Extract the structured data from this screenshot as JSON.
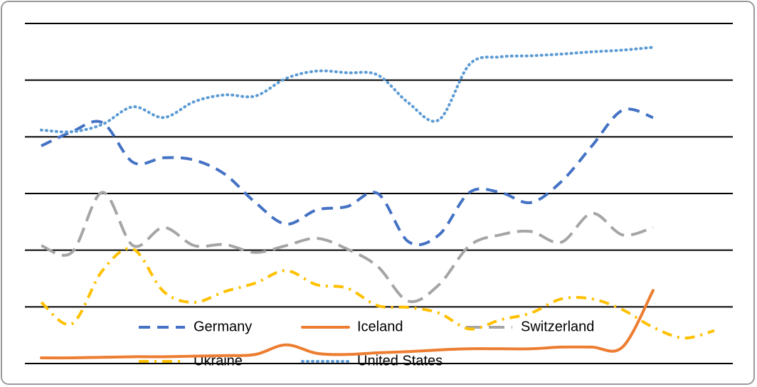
{
  "chart_data": {
    "type": "line",
    "categories": [
      null,
      null,
      null,
      null,
      null,
      null,
      null,
      null,
      null,
      null,
      null,
      null,
      null,
      null,
      null,
      null,
      null,
      null,
      null,
      null,
      null,
      null,
      null
    ],
    "ylim": [
      0,
      6
    ],
    "yticks": [
      0,
      1,
      2,
      3,
      4,
      5,
      6
    ],
    "grid": true,
    "legend": "bottom",
    "series": [
      {
        "name": "Germany",
        "color": "#4472c4",
        "values": [
          3.84,
          4.09,
          4.25,
          3.55,
          3.63,
          3.59,
          3.34,
          2.84,
          2.46,
          2.71,
          2.77,
          3.0,
          2.15,
          2.27,
          3.02,
          3.02,
          2.84,
          3.21,
          3.84,
          4.47,
          4.34,
          null,
          null
        ]
      },
      {
        "name": "Iceland",
        "color": "#ed7d31",
        "values": [
          0.1,
          0.1,
          0.11,
          0.12,
          0.12,
          0.13,
          0.14,
          0.16,
          0.33,
          0.18,
          0.16,
          0.19,
          0.21,
          0.24,
          0.26,
          0.26,
          0.26,
          0.29,
          0.29,
          0.29,
          1.29,
          null,
          null
        ]
      },
      {
        "name": "Switzerland",
        "color": "#a5a5a5",
        "values": [
          2.08,
          1.96,
          3.02,
          2.08,
          2.4,
          2.08,
          2.1,
          1.96,
          2.08,
          2.21,
          2.02,
          1.71,
          1.1,
          1.39,
          2.08,
          2.27,
          2.33,
          2.14,
          2.65,
          2.27,
          2.4,
          null,
          null
        ]
      },
      {
        "name": "Ukraine",
        "color": "#ffc000",
        "values": [
          1.08,
          0.7,
          1.64,
          2.02,
          1.27,
          1.08,
          1.27,
          1.42,
          1.64,
          1.39,
          1.33,
          1.02,
          0.99,
          0.89,
          0.61,
          0.77,
          0.89,
          1.14,
          1.14,
          0.95,
          0.64,
          0.45,
          0.58
        ]
      },
      {
        "name": "United States",
        "color": "#5b9bd5",
        "values": [
          4.12,
          4.09,
          4.22,
          4.53,
          4.34,
          4.62,
          4.74,
          4.72,
          5.03,
          5.16,
          5.13,
          5.09,
          4.6,
          4.3,
          5.28,
          5.41,
          5.43,
          5.46,
          5.5,
          5.53,
          5.58,
          null,
          null
        ]
      }
    ]
  }
}
